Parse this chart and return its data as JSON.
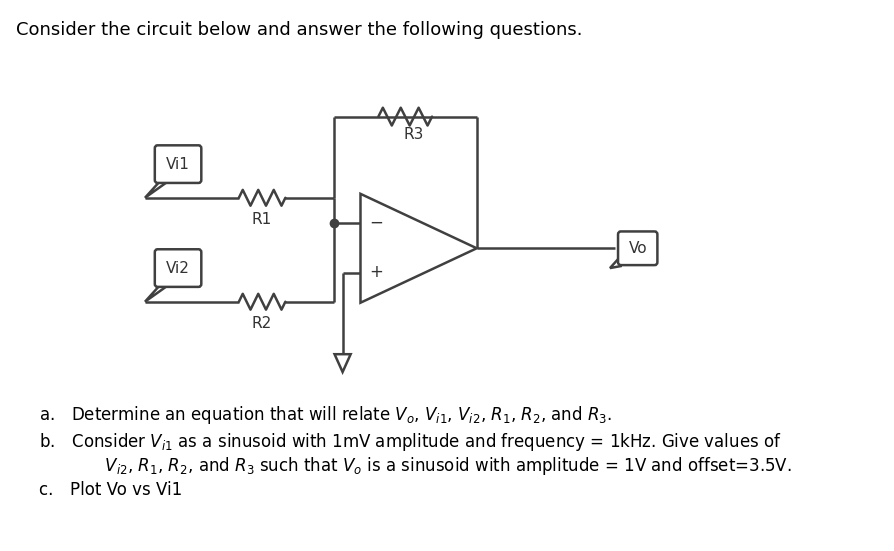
{
  "title": "Consider the circuit below and answer the following questions.",
  "label_vi1": "Vi1",
  "label_vi2": "Vi2",
  "label_r1": "R1",
  "label_r2": "R2",
  "label_r3": "R3",
  "label_vo": "Vo",
  "label_minus": "−",
  "label_plus": "+",
  "bg_color": "#ffffff",
  "line_color": "#404040",
  "text_color": "#000000",
  "font_size_title": 13,
  "font_size_labels": 11,
  "font_size_questions": 12,
  "qa": "a. Determine an equation that will relate $V_o$, $V_{i1}$, $V_{i2}$, $R_1$, $R_2$, and $R_3$.",
  "qb_line1": "b. Consider $V_{i1}$ as a sinusoid with 1mV amplitude and frequency = 1kHz. Give values of",
  "qb_line2": "   $V_{i2}$, $R_1$, $R_2$, and $R_3$ such that $V_o$ is a sinusoid with amplitude = 1V and offset=3.5V.",
  "qc": "c. Plot Vo vs Vi1"
}
